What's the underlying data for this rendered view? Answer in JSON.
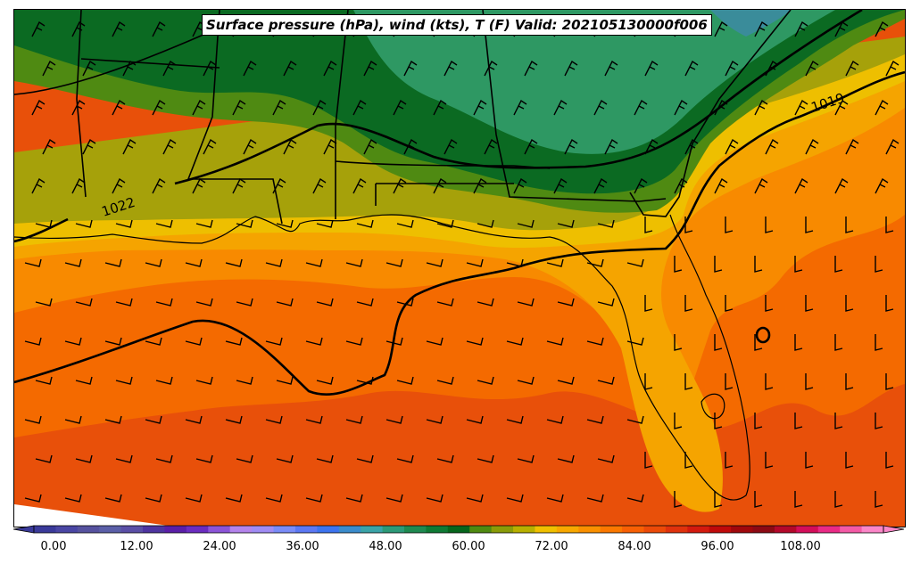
{
  "title": "Surface pressure (hPa), wind (kts), T (F) Valid: 202105130000f006",
  "isobar_labels": [
    "1022",
    "1019"
  ],
  "colorbar": {
    "ticks": [
      "0.00",
      "12.00",
      "24.00",
      "36.00",
      "48.00",
      "60.00",
      "72.00",
      "84.00",
      "96.00",
      "108.00"
    ],
    "colors": [
      "#3a3a9a",
      "#4a46a4",
      "#56529f",
      "#5b5fa8",
      "#5a4ea6",
      "#4e34a0",
      "#5a1ea8",
      "#6b2cc0",
      "#8c54d8",
      "#b484ec",
      "#a08cf4",
      "#7a8cf8",
      "#5c78f4",
      "#3c74f0",
      "#3a8ccc",
      "#3aa4a8",
      "#2c9a78",
      "#1e8a50",
      "#0e7a34",
      "#06661c",
      "#4f8a10",
      "#8a9c08",
      "#b8b000",
      "#f0c000",
      "#f8a800",
      "#fa9000",
      "#fb7800",
      "#f86004",
      "#ec4a08",
      "#e0320c",
      "#d41a0e",
      "#c00a0a",
      "#a0080c",
      "#8c0a14",
      "#b4082a",
      "#d40e5a",
      "#ea2a86",
      "#f45aa6",
      "#fb86c8"
    ]
  }
}
